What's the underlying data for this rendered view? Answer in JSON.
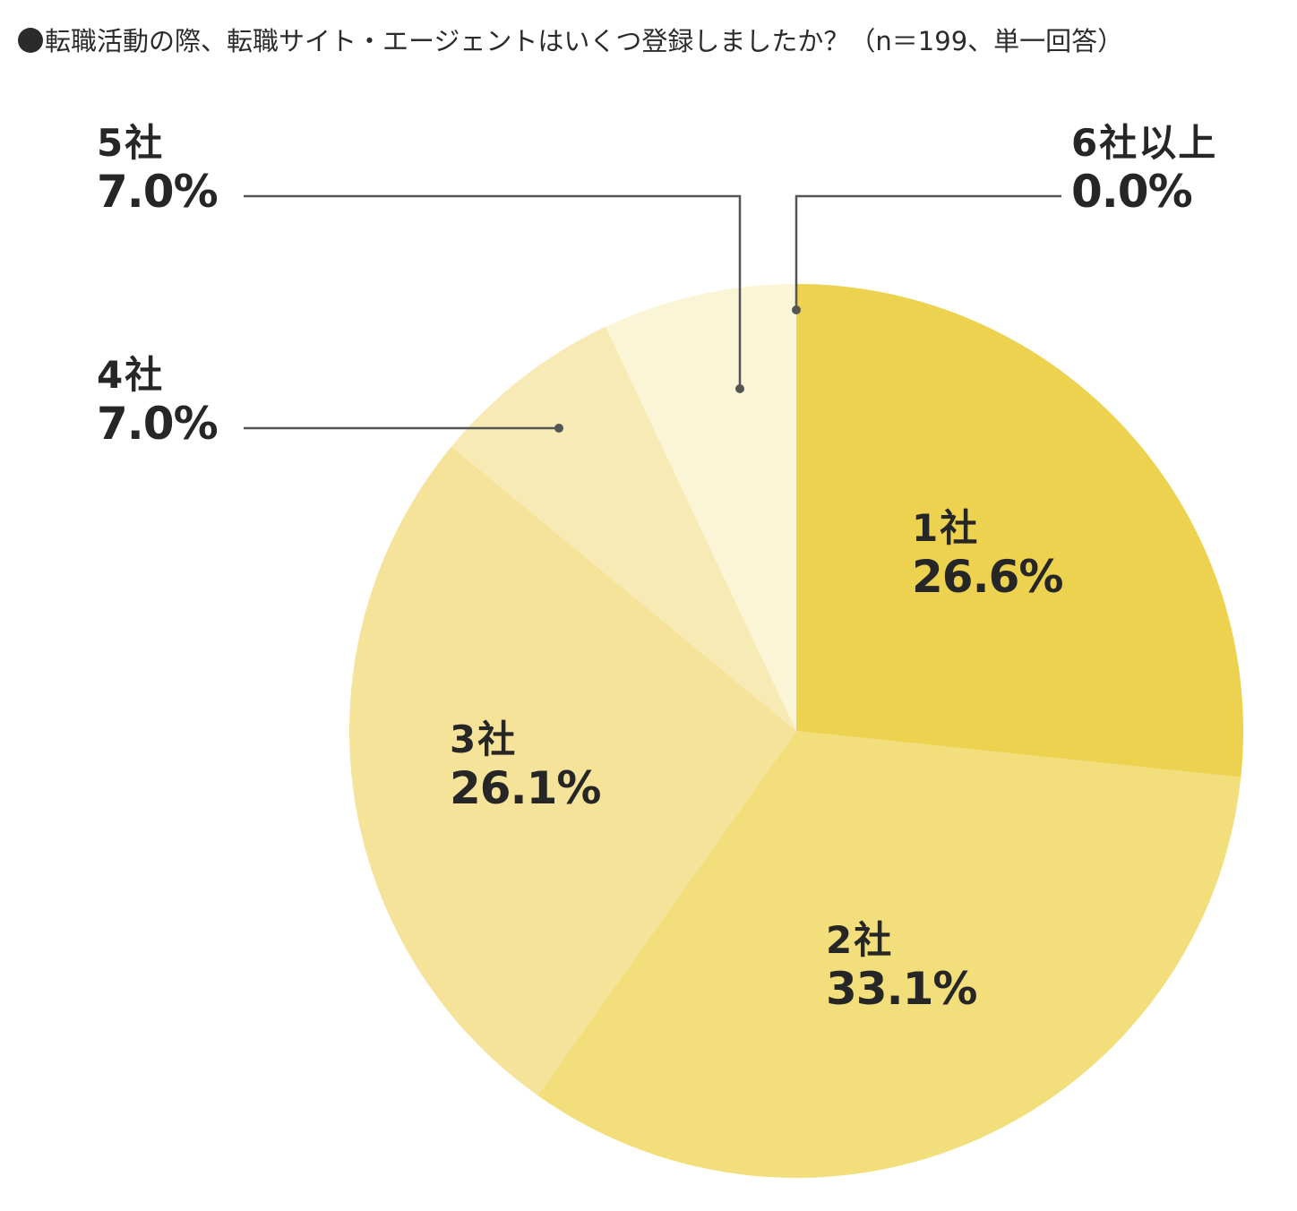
{
  "title": {
    "bullet": "●",
    "text": "転職活動の際、転職サイト・エージェントはいくつ登録しましたか？（n＝199、単一回答）"
  },
  "labels": {
    "c1": {
      "name": "1社",
      "pct": "26.6%"
    },
    "c2": {
      "name": "2社",
      "pct": "33.1%"
    },
    "c3": {
      "name": "3社",
      "pct": "26.1%"
    },
    "c4": {
      "name": "4社",
      "pct": "7.0%"
    },
    "c5": {
      "name": "5社",
      "pct": "7.0%"
    },
    "c6": {
      "name": "6社以上",
      "pct": "0.0%"
    }
  },
  "chart_data": {
    "type": "pie",
    "title": "転職活動の際、転職サイト・エージェントはいくつ登録しましたか？（n＝199、単一回答）",
    "sample_size": 199,
    "answer_type": "単一回答",
    "categories": [
      "1社",
      "2社",
      "3社",
      "4社",
      "5社",
      "6社以上"
    ],
    "values": [
      26.6,
      33.1,
      26.1,
      7.0,
      7.0,
      0.0
    ],
    "unit": "%",
    "colors": [
      "#EDD250",
      "#F2DE7A",
      "#F5E399",
      "#F8EAB4",
      "#FBF5D8",
      "#FFFFFF"
    ],
    "start_angle": "12 o'clock",
    "direction": "clockwise",
    "legend": "none (direct labels; 4社, 5社, 6社以上 via leader lines)"
  },
  "colors": {
    "text": "#262626",
    "leader": "#555555"
  }
}
